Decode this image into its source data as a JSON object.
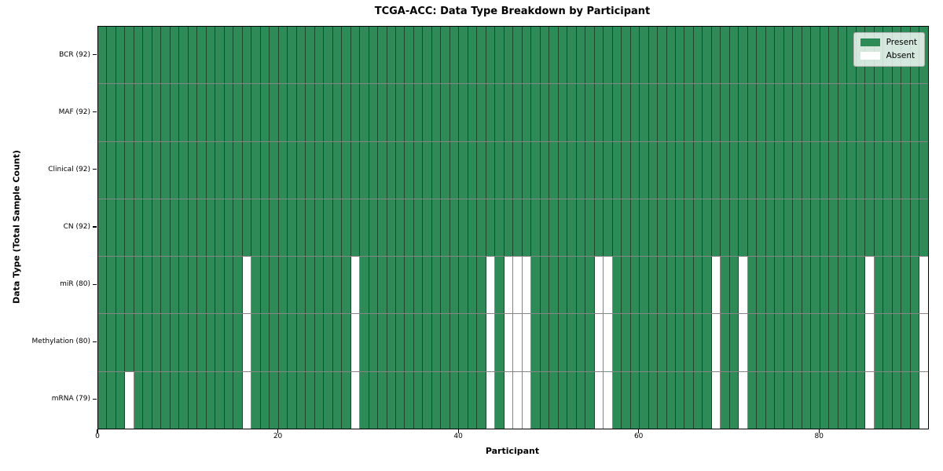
{
  "chart_data": {
    "type": "heatmap",
    "title": "TCGA-ACC: Data Type Breakdown by Participant",
    "xlabel": "Participant",
    "ylabel": "Data Type (Total Sample Count)",
    "n_participants": 92,
    "x_ticks": [
      0,
      20,
      40,
      60,
      80
    ],
    "xlim": [
      0,
      92
    ],
    "grid": true,
    "legend_position": "upper right",
    "colors": {
      "present": "#2E8B57",
      "absent": "#FFFFFF",
      "cell_edge": "rgba(0,0,0,0.48)"
    },
    "legend": [
      {
        "label": "Present",
        "color": "#2E8B57"
      },
      {
        "label": "Absent",
        "color": "#FFFFFF"
      }
    ],
    "rows": [
      {
        "label": "BCR (92)",
        "total_samples": 92,
        "absent_participants": []
      },
      {
        "label": "MAF (92)",
        "total_samples": 92,
        "absent_participants": []
      },
      {
        "label": "Clinical (92)",
        "total_samples": 92,
        "absent_participants": []
      },
      {
        "label": "CN (92)",
        "total_samples": 92,
        "absent_participants": []
      },
      {
        "label": "miR (80)",
        "total_samples": 80,
        "absent_participants": [
          16,
          28,
          43,
          45,
          46,
          47,
          55,
          56,
          68,
          71,
          85,
          91
        ]
      },
      {
        "label": "Methylation (80)",
        "total_samples": 80,
        "absent_participants": [
          16,
          28,
          43,
          45,
          46,
          47,
          55,
          56,
          68,
          71,
          85,
          91
        ]
      },
      {
        "label": "mRNA (79)",
        "total_samples": 79,
        "absent_participants": [
          3,
          16,
          28,
          43,
          45,
          46,
          47,
          55,
          56,
          68,
          71,
          85,
          91
        ]
      }
    ]
  }
}
